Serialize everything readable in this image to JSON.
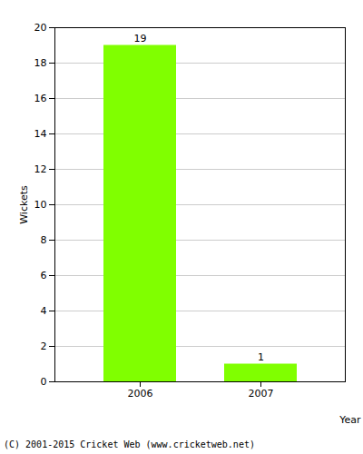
{
  "chart_data": {
    "type": "bar",
    "categories": [
      "2006",
      "2007"
    ],
    "values": [
      19,
      1
    ],
    "color": "#80ff00",
    "x_label": "Year",
    "y_label": "Wickets",
    "ylim": [
      0,
      20
    ],
    "yticks": [
      0,
      2,
      4,
      6,
      8,
      10,
      12,
      14,
      16,
      18,
      20
    ],
    "grid": true,
    "data_labels": true,
    "caption": "(C) 2001-2015 Cricket Web (www.cricketweb.net)"
  }
}
